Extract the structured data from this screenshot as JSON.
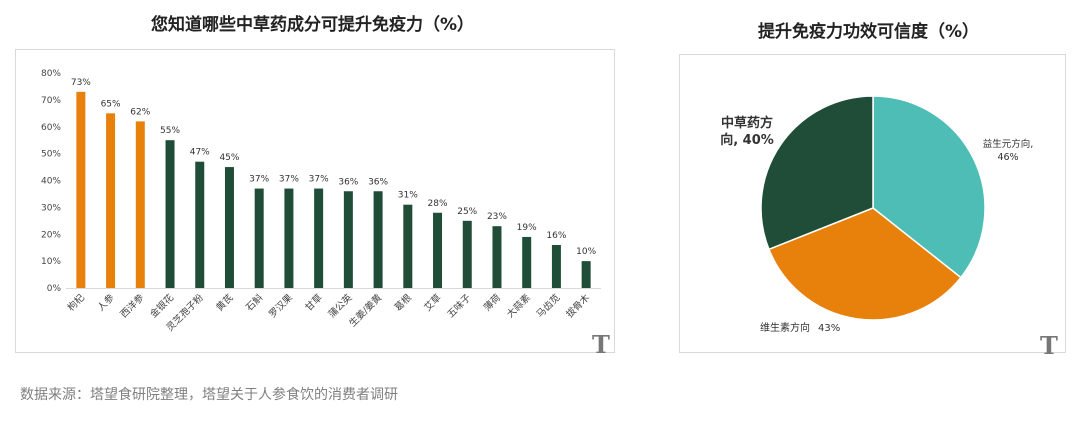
{
  "source_text": "数据来源：塔望食研院整理，塔望关于人参食饮的消费者调研",
  "watermark": "T",
  "colors": {
    "orange": "#E8810B",
    "dark_green": "#1F4D38",
    "teal": "#4DBDB6",
    "axis_text": "#444444",
    "grid": "#d9d9d9"
  },
  "chart_data": [
    {
      "type": "bar",
      "title": "您知道哪些中草药成分可提升免疫力（%）",
      "categories": [
        "枸杞",
        "人参",
        "西洋参",
        "金银花",
        "灵芝孢子粉",
        "黄芪",
        "石斛",
        "罗汉果",
        "甘草",
        "蒲公英",
        "生姜/姜黄",
        "葛根",
        "艾草",
        "五味子",
        "薄荷",
        "大蒜素",
        "马齿苋",
        "拔骨木"
      ],
      "values": [
        73,
        65,
        62,
        55,
        47,
        45,
        37,
        37,
        37,
        36,
        36,
        31,
        28,
        25,
        23,
        19,
        16,
        10
      ],
      "value_labels": [
        "73%",
        "65%",
        "62%",
        "55%",
        "47%",
        "45%",
        "37%",
        "37%",
        "37%",
        "36%",
        "36%",
        "31%",
        "28%",
        "25%",
        "23%",
        "19%",
        "16%",
        "10%"
      ],
      "bar_colors": [
        "orange",
        "orange",
        "orange",
        "dark_green",
        "dark_green",
        "dark_green",
        "dark_green",
        "dark_green",
        "dark_green",
        "dark_green",
        "dark_green",
        "dark_green",
        "dark_green",
        "dark_green",
        "dark_green",
        "dark_green",
        "dark_green",
        "dark_green"
      ],
      "yticks": [
        "0%",
        "10%",
        "20%",
        "30%",
        "40%",
        "50%",
        "60%",
        "70%",
        "80%"
      ],
      "ylim": [
        0,
        80
      ],
      "grid": false
    },
    {
      "type": "pie",
      "title": "提升免疫力功效可信度（%）",
      "slices": [
        {
          "label": "益生元方向,",
          "value_label": "46%",
          "value": 46,
          "color": "teal"
        },
        {
          "label": "维生素方向",
          "value_label": "43%",
          "value": 43,
          "color": "orange"
        },
        {
          "label": "中草药方向, 40%",
          "value": 40,
          "color": "dark_green"
        }
      ]
    }
  ]
}
